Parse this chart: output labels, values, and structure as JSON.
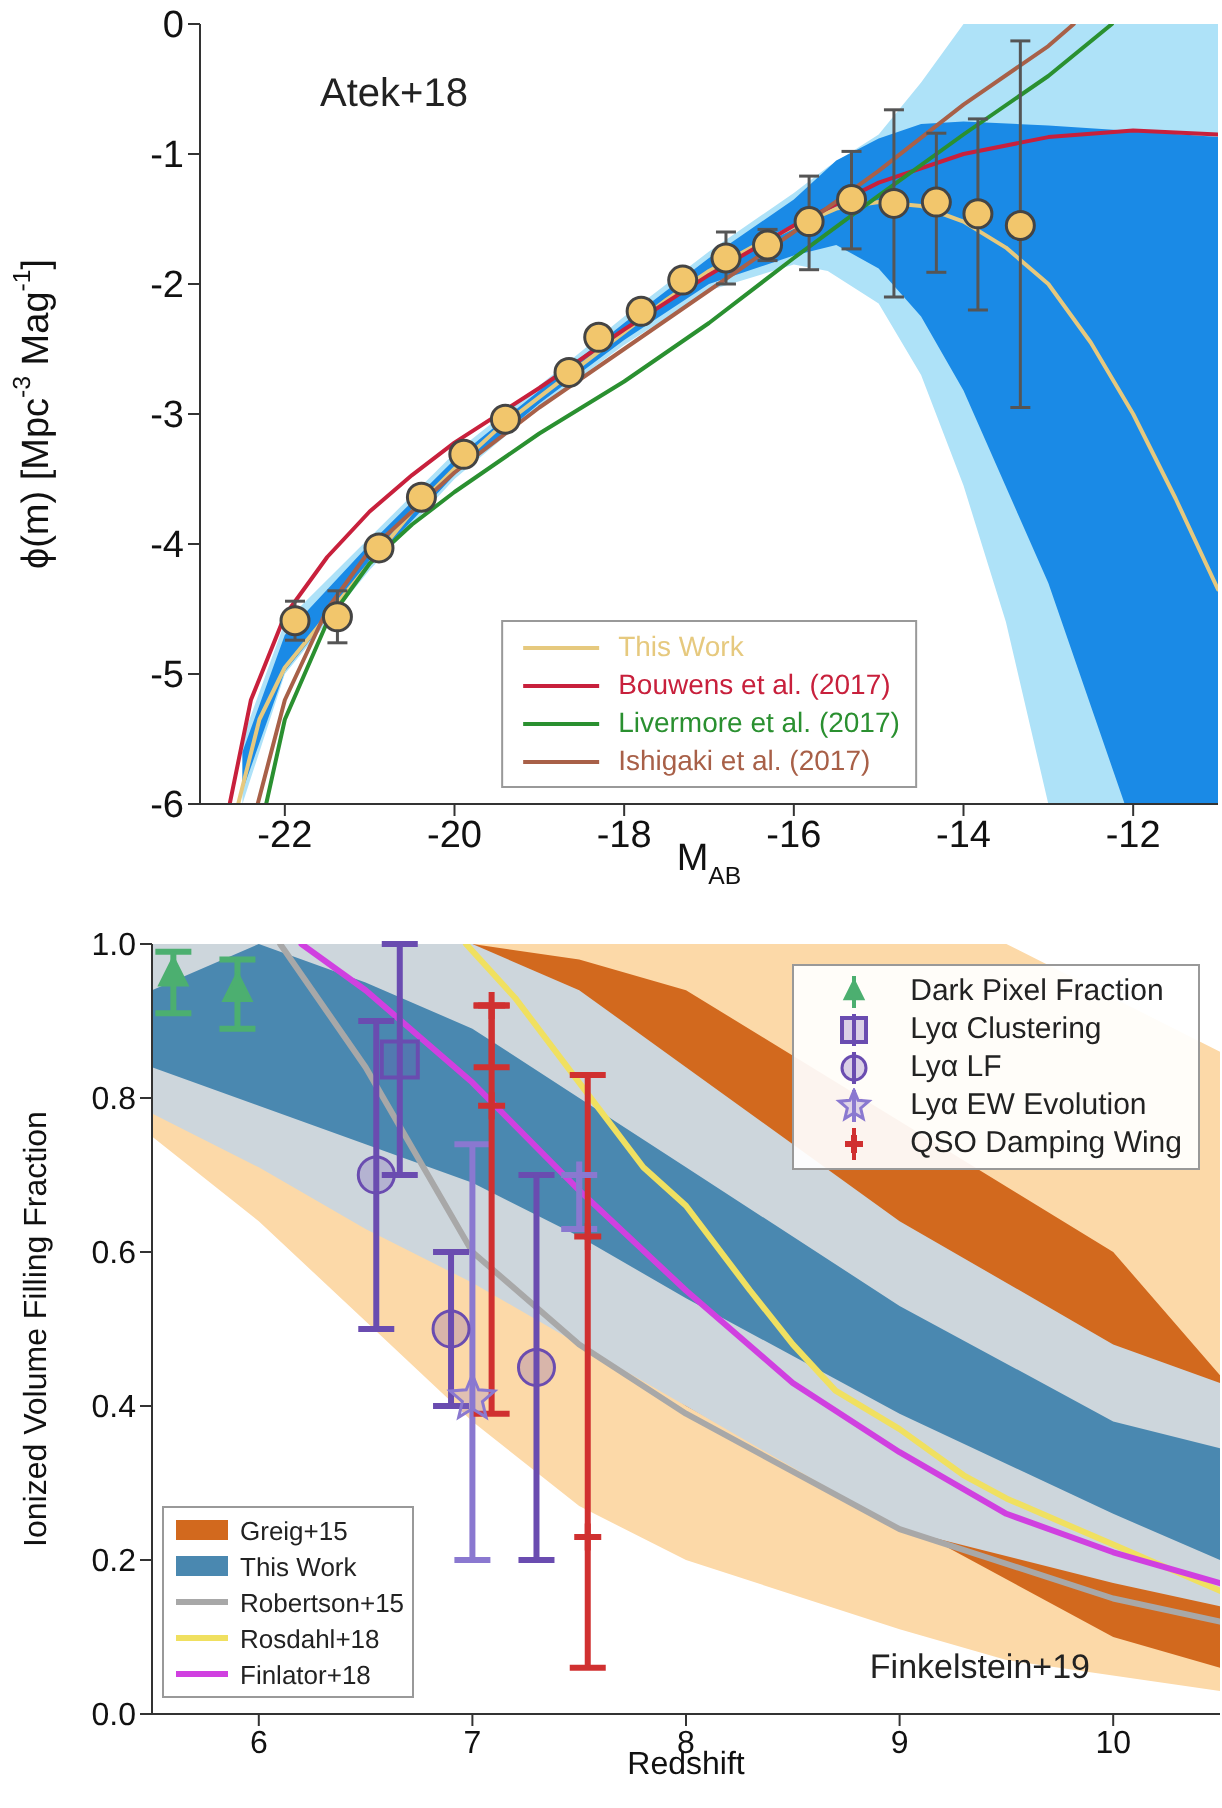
{
  "chart_data": [
    {
      "type": "line",
      "xlabel": "M$_{AB}$",
      "ylabel": "ϕ(m) [Mpc$^{-3}$ Mag$^{-1}$]",
      "annotations": [
        "Atek+18"
      ],
      "xlim": [
        -23,
        -11
      ],
      "ylim": [
        -6,
        0
      ],
      "xticks": [
        -22,
        -20,
        -18,
        -16,
        -14,
        -12
      ],
      "yticks": [
        0,
        -1,
        -2,
        -3,
        -4,
        -5,
        -6
      ],
      "legend": "bottom",
      "grid": false,
      "series": [
        {
          "color": "#aee2f8",
          "x": [
            -22.5,
            -22,
            -21,
            -20,
            -19,
            -18,
            -17,
            -16,
            -15.6,
            -15,
            -14.5,
            -14,
            -13.5,
            -13,
            -11
          ],
          "values": [
            null,
            null,
            null,
            null,
            null,
            null,
            null,
            null,
            null,
            null,
            null,
            null,
            null,
            null,
            null
          ],
          "upper": [
            -5.5,
            -4.6,
            -3.95,
            -3.3,
            -2.78,
            -2.25,
            -1.75,
            -1.3,
            -1.1,
            -0.85,
            -0.45,
            0,
            0,
            0,
            0
          ],
          "lower": [
            -6,
            -5.0,
            -4.2,
            -3.5,
            -2.95,
            -2.47,
            -2.05,
            -1.85,
            -1.9,
            -2.15,
            -2.7,
            -3.55,
            -4.6,
            -6,
            -6
          ]
        },
        {
          "color": "#1a8ae6",
          "x": [
            -22.5,
            -22,
            -21,
            -20,
            -19,
            -18,
            -17,
            -16,
            -15.5,
            -15,
            -14.5,
            -14,
            -13,
            -12.1,
            -11
          ],
          "values": [
            null,
            null,
            null,
            null,
            null,
            null,
            null,
            null,
            null,
            null,
            null,
            null,
            null,
            null,
            null
          ],
          "upper": [
            -5.6,
            -4.7,
            -4.0,
            -3.35,
            -2.82,
            -2.3,
            -1.8,
            -1.35,
            -1.05,
            -0.88,
            -0.77,
            -0.75,
            -0.78,
            -0.82,
            -0.87
          ],
          "lower": [
            -5.9,
            -4.98,
            -4.17,
            -3.47,
            -2.92,
            -2.43,
            -2.0,
            -1.78,
            -1.7,
            -1.88,
            -2.25,
            -2.82,
            -4.3,
            -6,
            -6
          ]
        },
        {
          "name": "This Work",
          "color": "#e6c97e",
          "x": [
            -22.55,
            -22.3,
            -22,
            -21.5,
            -21,
            -20.5,
            -20,
            -19.5,
            -19,
            -18.5,
            -18,
            -17.5,
            -17,
            -16.5,
            -16,
            -15.5,
            -15,
            -14.5,
            -14,
            -13.5,
            -13,
            -12.5,
            -12,
            -11.5,
            -11
          ],
          "values": [
            -6,
            -5.35,
            -4.95,
            -4.55,
            -4.15,
            -3.75,
            -3.42,
            -3.12,
            -2.87,
            -2.62,
            -2.37,
            -2.12,
            -1.9,
            -1.72,
            -1.56,
            -1.42,
            -1.37,
            -1.4,
            -1.52,
            -1.72,
            -2.0,
            -2.45,
            -3.0,
            -3.65,
            -4.35
          ]
        },
        {
          "name": "Bouwens et al. (2017)",
          "color": "#c8203c",
          "x": [
            -22.65,
            -22.4,
            -22,
            -21.5,
            -21,
            -20.5,
            -20,
            -19,
            -18,
            -17,
            -16,
            -15,
            -14,
            -13,
            -12,
            -11
          ],
          "values": [
            -6,
            -5.2,
            -4.55,
            -4.1,
            -3.75,
            -3.47,
            -3.22,
            -2.8,
            -2.35,
            -1.93,
            -1.55,
            -1.22,
            -1.0,
            -0.87,
            -0.82,
            -0.85
          ]
        },
        {
          "name": "Livermore et al. (2017)",
          "color": "#2a9030",
          "x": [
            -22.22,
            -22,
            -21.5,
            -21,
            -20.5,
            -20,
            -19,
            -18,
            -17,
            -16,
            -15,
            -14,
            -13,
            -12.25
          ],
          "values": [
            -6,
            -5.35,
            -4.6,
            -4.15,
            -3.85,
            -3.6,
            -3.15,
            -2.75,
            -2.3,
            -1.8,
            -1.32,
            -0.85,
            -0.4,
            0
          ]
        },
        {
          "name": "Ishigaki et al. (2017)",
          "color": "#a86048",
          "x": [
            -22.32,
            -22,
            -21.5,
            -21,
            -20,
            -19,
            -18,
            -17,
            -16,
            -15,
            -14,
            -13,
            -12.7
          ],
          "values": [
            -6,
            -5.2,
            -4.5,
            -4.05,
            -3.45,
            -2.95,
            -2.5,
            -2.05,
            -1.6,
            -1.13,
            -0.62,
            -0.17,
            0
          ]
        },
        {
          "type": "scatter",
          "color": "#f2c66c",
          "marker": "circle",
          "x": [
            -21.88,
            -21.38,
            -20.89,
            -20.39,
            -19.89,
            -19.4,
            -18.65,
            -18.3,
            -17.8,
            -17.31,
            -16.8,
            -16.31,
            -15.82,
            -15.32,
            -14.82,
            -14.32,
            -13.83,
            -13.33
          ],
          "values": [
            -4.59,
            -4.56,
            -4.03,
            -3.64,
            -3.31,
            -3.04,
            -2.68,
            -2.41,
            -2.21,
            -1.97,
            -1.8,
            -1.7,
            -1.52,
            -1.35,
            -1.38,
            -1.37,
            -1.46,
            -1.55
          ],
          "errors": [
            0.15,
            0.2,
            0.07,
            null,
            null,
            null,
            null,
            null,
            null,
            null,
            0.2,
            0.12,
            [
              -1.89,
              -1.17
            ],
            [
              -1.73,
              -0.98
            ],
            [
              -2.1,
              -0.66
            ],
            [
              -1.91,
              -0.84
            ],
            [
              -2.2,
              -0.73
            ],
            [
              -2.95,
              -0.13
            ]
          ]
        }
      ]
    },
    {
      "type": "line",
      "xlabel": "Redshift",
      "ylabel": "Ionized Volume Filling Fraction",
      "annotations": [
        "Finkelstein+19"
      ],
      "xlim": [
        5.5,
        10.5
      ],
      "ylim": [
        0,
        1
      ],
      "xticks": [
        6,
        7,
        8,
        9,
        10
      ],
      "yticks": [
        {
          "value": 0,
          "label": "0.0"
        },
        {
          "value": 0.2,
          "label": "0.2"
        },
        {
          "value": 0.4,
          "label": "0.4"
        },
        {
          "value": 0.6,
          "label": "0.6"
        },
        {
          "value": 0.8,
          "label": "0.8"
        },
        {
          "value": 1,
          "label": "1.0"
        }
      ],
      "legend": "bottom left",
      "grid": false,
      "series": [
        {
          "color": "#fcd9a8",
          "x": [
            5.5,
            6,
            6.5,
            7,
            7.5,
            8,
            9,
            9.5,
            10.5
          ],
          "values": [
            null,
            null,
            null,
            null,
            null,
            null,
            null,
            null,
            null
          ],
          "upper": [
            1,
            1,
            1,
            1,
            1,
            1,
            1,
            1,
            0.86
          ],
          "lower": [
            0.75,
            0.64,
            0.51,
            0.38,
            0.27,
            0.2,
            0.11,
            0.07,
            0.03
          ]
        },
        {
          "name": "Greig+15",
          "color": "#d2691e",
          "x": [
            7,
            7.5,
            8,
            10,
            10.5
          ],
          "values": [
            null,
            null,
            null,
            null,
            null
          ],
          "upper": [
            1,
            0.98,
            0.94,
            0.6,
            0.44
          ],
          "lower": [
            0.58,
            0.5,
            0.4,
            0.1,
            0.06
          ]
        },
        {
          "color": "#cdd6dc",
          "x": [
            5.5,
            6,
            6.5,
            7,
            7.5,
            8,
            9,
            10,
            10.5
          ],
          "values": [
            null,
            null,
            null,
            null,
            null,
            null,
            null,
            null,
            null
          ],
          "upper": [
            1,
            1,
            1,
            1,
            0.94,
            0.84,
            0.64,
            0.48,
            0.43
          ],
          "lower": [
            0.78,
            0.71,
            0.63,
            0.56,
            0.48,
            0.4,
            0.24,
            0.17,
            0.14
          ]
        },
        {
          "name": "This Work",
          "color": "#4a88b0",
          "x": [
            5.5,
            6,
            6.5,
            7,
            7.5,
            8,
            9,
            10,
            10.5
          ],
          "values": [
            null,
            null,
            null,
            null,
            null,
            null,
            null,
            null,
            null
          ],
          "upper": [
            0.94,
            1,
            0.95,
            0.89,
            0.8,
            0.71,
            0.53,
            0.38,
            0.345
          ],
          "lower": [
            0.84,
            0.79,
            0.74,
            0.69,
            0.62,
            0.54,
            0.39,
            0.26,
            0.2
          ]
        },
        {
          "name": "Robertson+15",
          "color": "#a8a8a8",
          "x": [
            6.1,
            6.5,
            7,
            7.5,
            8,
            9,
            10,
            10.5
          ],
          "values": [
            1,
            0.84,
            0.6,
            0.48,
            0.39,
            0.24,
            0.15,
            0.12
          ]
        },
        {
          "name": "Rosdahl+18",
          "color": "#f0e060",
          "x": [
            6.97,
            7.2,
            7.5,
            7.8,
            8,
            8.3,
            8.5,
            8.7,
            9,
            9.3,
            9.5,
            10,
            10.5
          ],
          "values": [
            1,
            0.93,
            0.82,
            0.71,
            0.66,
            0.55,
            0.48,
            0.42,
            0.37,
            0.31,
            0.28,
            0.22,
            0.16
          ]
        },
        {
          "name": "Finlator+18",
          "color": "#d040e0",
          "x": [
            6.2,
            6.5,
            7,
            7.5,
            8,
            8.5,
            9,
            9.5,
            10,
            10.5
          ],
          "values": [
            1,
            0.94,
            0.82,
            0.68,
            0.55,
            0.43,
            0.34,
            0.26,
            0.21,
            0.17
          ]
        },
        {
          "name": "Dark Pixel Fraction",
          "type": "scatter",
          "color": "#4caf70",
          "marker": "triangle",
          "x": [
            5.6,
            5.9
          ],
          "values": [
            0.96,
            0.94
          ],
          "errors": [
            [
              0.91,
              0.99
            ],
            [
              0.89,
              0.98
            ]
          ]
        },
        {
          "name": "Lyα Clustering",
          "type": "scatter",
          "color": "#6a4cb0",
          "marker": "square",
          "x": [
            6.66
          ],
          "values": [
            0.85
          ],
          "errors": [
            0.15
          ]
        },
        {
          "name": "Lyα LF",
          "type": "scatter",
          "color": "#6a4cb0",
          "marker": "circle",
          "x": [
            6.55,
            6.9,
            7.3
          ],
          "values": [
            0.7,
            0.5,
            0.45
          ],
          "errors": [
            0.2,
            0.1,
            0.25
          ]
        },
        {
          "name": "Lyα EW Evolution",
          "type": "scatter",
          "color": "#8a78d0",
          "marker": "star",
          "x": [
            7.0
          ],
          "values": [
            0.41
          ],
          "errors": [
            [
              0.2,
              0.74
            ]
          ]
        },
        {
          "type": "scatter",
          "color": "#8a78d0",
          "marker": "cross",
          "x": [
            7.5
          ],
          "values": [
            0.7
          ],
          "errors": [
            [
              0.63,
              0.7
            ]
          ]
        },
        {
          "name": "QSO Damping Wing",
          "type": "scatter",
          "color": "#d03030",
          "marker": "cross",
          "x": [
            7.09,
            7.09,
            7.54,
            7.54
          ],
          "values": [
            0.79,
            0.92,
            0.62,
            0.23
          ],
          "errors": [
            [
              0.39,
              0.92
            ],
            [
              0.84,
              0.92
            ],
            [
              0.06,
              0.83
            ],
            0
          ]
        }
      ]
    }
  ]
}
